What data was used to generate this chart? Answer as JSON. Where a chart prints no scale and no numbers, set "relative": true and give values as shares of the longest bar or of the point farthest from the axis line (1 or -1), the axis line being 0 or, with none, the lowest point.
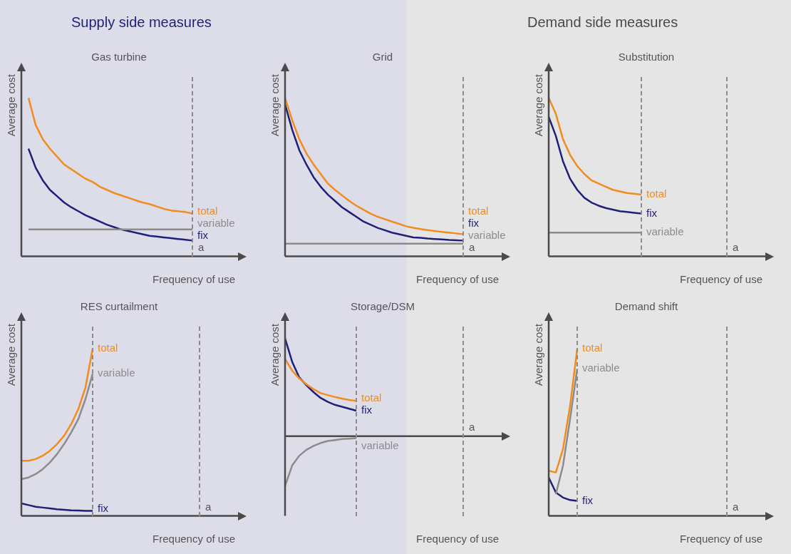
{
  "chart_data": [
    {
      "type": "other",
      "title": "Supply side measures"
    },
    {
      "type": "other",
      "title": "Demand side measures"
    },
    {
      "type": "line",
      "title": "Gas turbine",
      "xlabel": "Frequency of use",
      "ylabel": "Average cost",
      "relative": true,
      "annotations": [
        "a"
      ],
      "categories": [
        null,
        null,
        null,
        null,
        null,
        null,
        null,
        null,
        null,
        null,
        null,
        null,
        null,
        null,
        null,
        null,
        null,
        null,
        null,
        null,
        null,
        null,
        null,
        null,
        null,
        null,
        null,
        null,
        null,
        null,
        null
      ],
      "series": [
        {
          "name": "total",
          "color": "#f28c1e",
          "values": [
            null,
            1.0,
            0.83,
            0.74,
            0.68,
            0.63,
            0.58,
            0.55,
            0.52,
            0.49,
            0.47,
            0.44,
            0.42,
            0.4,
            0.385,
            0.37,
            0.355,
            0.34,
            0.33,
            0.315,
            0.3,
            0.29,
            0.285,
            0.28,
            0.27,
            null,
            null,
            null,
            null,
            null,
            null
          ]
        },
        {
          "name": "variable",
          "color": "#8c8c8c",
          "values": [
            null,
            0.17,
            0.17,
            0.17,
            0.17,
            0.17,
            0.17,
            0.17,
            0.17,
            0.17,
            0.17,
            0.17,
            0.17,
            0.17,
            0.17,
            0.17,
            0.17,
            0.17,
            0.17,
            0.17,
            0.17,
            0.17,
            0.17,
            0.17,
            0.17,
            null,
            null,
            null,
            null,
            null,
            null
          ]
        },
        {
          "name": "fix",
          "color": "#1f1f7a",
          "values": [
            null,
            0.68,
            0.56,
            0.48,
            0.42,
            0.38,
            0.34,
            0.31,
            0.285,
            0.26,
            0.24,
            0.22,
            0.2,
            0.185,
            0.17,
            0.16,
            0.15,
            0.14,
            0.13,
            0.125,
            0.12,
            0.115,
            0.11,
            0.105,
            0.1,
            null,
            null,
            null,
            null,
            null,
            null
          ]
        }
      ]
    },
    {
      "type": "line",
      "title": "Grid",
      "xlabel": "Frequency of use",
      "ylabel": "Average cost",
      "relative": true,
      "annotations": [
        "a"
      ],
      "categories": [
        null,
        null,
        null,
        null,
        null,
        null,
        null,
        null,
        null,
        null,
        null,
        null,
        null,
        null,
        null,
        null,
        null,
        null,
        null,
        null,
        null,
        null,
        null,
        null,
        null,
        null,
        null,
        null,
        null,
        null,
        null
      ],
      "series": [
        {
          "name": "total",
          "color": "#f28c1e",
          "values": [
            1.0,
            0.86,
            0.74,
            0.65,
            0.58,
            0.52,
            0.46,
            0.42,
            0.385,
            0.35,
            0.32,
            0.295,
            0.27,
            0.25,
            0.235,
            0.22,
            0.205,
            0.19,
            0.18,
            0.173,
            0.166,
            0.16,
            0.155,
            0.15,
            0.145,
            0.14,
            null,
            null,
            null,
            null,
            null
          ]
        },
        {
          "name": "fix",
          "color": "#1f1f7a",
          "values": [
            0.96,
            0.8,
            0.67,
            0.58,
            0.5,
            0.44,
            0.39,
            0.35,
            0.31,
            0.28,
            0.25,
            0.22,
            0.2,
            0.18,
            0.165,
            0.15,
            0.14,
            0.13,
            0.12,
            0.117,
            0.113,
            0.11,
            0.107,
            0.104,
            0.102,
            0.1,
            null,
            null,
            null,
            null,
            null
          ]
        },
        {
          "name": "variable",
          "color": "#8c8c8c",
          "values": [
            0.08,
            0.08,
            0.08,
            0.08,
            0.08,
            0.08,
            0.08,
            0.08,
            0.08,
            0.08,
            0.08,
            0.08,
            0.08,
            0.08,
            0.08,
            0.08,
            0.08,
            0.08,
            0.08,
            0.08,
            0.08,
            0.08,
            0.08,
            0.08,
            0.08,
            0.08,
            null,
            null,
            null,
            null,
            null
          ]
        }
      ]
    },
    {
      "type": "line",
      "title": "Substitution",
      "xlabel": "Frequency of use",
      "ylabel": "Average cost",
      "relative": true,
      "annotations": [
        "a"
      ],
      "categories": [
        null,
        null,
        null,
        null,
        null,
        null,
        null,
        null,
        null,
        null,
        null,
        null,
        null,
        null,
        null,
        null,
        null,
        null,
        null,
        null,
        null,
        null,
        null,
        null,
        null,
        null,
        null,
        null,
        null,
        null,
        null
      ],
      "series": [
        {
          "name": "total",
          "color": "#f28c1e",
          "values": [
            1.0,
            0.9,
            0.74,
            0.64,
            0.57,
            0.52,
            0.48,
            0.46,
            0.44,
            0.42,
            0.41,
            0.4,
            0.395,
            0.39,
            null,
            null,
            null,
            null,
            null,
            null,
            null,
            null,
            null,
            null,
            null,
            null,
            null,
            null,
            null,
            null,
            null
          ]
        },
        {
          "name": "fix",
          "color": "#1f1f7a",
          "values": [
            0.88,
            0.76,
            0.6,
            0.49,
            0.42,
            0.37,
            0.34,
            0.32,
            0.305,
            0.295,
            0.285,
            0.28,
            0.275,
            0.27,
            null,
            null,
            null,
            null,
            null,
            null,
            null,
            null,
            null,
            null,
            null,
            null,
            null,
            null,
            null,
            null,
            null
          ]
        },
        {
          "name": "variable",
          "color": "#8c8c8c",
          "values": [
            0.15,
            0.15,
            0.15,
            0.15,
            0.15,
            0.15,
            0.15,
            0.15,
            0.15,
            0.15,
            0.15,
            0.15,
            0.15,
            0.15,
            null,
            null,
            null,
            null,
            null,
            null,
            null,
            null,
            null,
            null,
            null,
            null,
            null,
            null,
            null,
            null,
            null
          ]
        }
      ]
    },
    {
      "type": "line",
      "title": "RES curtailment",
      "xlabel": "Frequency of use",
      "ylabel": "Average cost",
      "relative": true,
      "annotations": [
        "a"
      ],
      "categories": [
        null,
        null,
        null,
        null,
        null,
        null,
        null,
        null,
        null,
        null,
        null,
        null,
        null,
        null,
        null,
        null,
        null,
        null,
        null,
        null,
        null,
        null,
        null,
        null,
        null,
        null,
        null,
        null,
        null,
        null,
        null
      ],
      "series": [
        {
          "name": "total",
          "color": "#f28c1e",
          "values": [
            0.33,
            0.33,
            0.34,
            0.36,
            0.39,
            0.43,
            0.48,
            0.55,
            0.64,
            0.77,
            1.0,
            null,
            null,
            null,
            null,
            null,
            null,
            null,
            null,
            null,
            null,
            null,
            null,
            null,
            null,
            null,
            null,
            null,
            null,
            null,
            null
          ]
        },
        {
          "name": "variable",
          "color": "#8c8c8c",
          "values": [
            0.22,
            0.23,
            0.25,
            0.28,
            0.32,
            0.37,
            0.43,
            0.5,
            0.58,
            0.7,
            0.85,
            null,
            null,
            null,
            null,
            null,
            null,
            null,
            null,
            null,
            null,
            null,
            null,
            null,
            null,
            null,
            null,
            null,
            null,
            null,
            null
          ]
        },
        {
          "name": "fix",
          "color": "#1f1f7a",
          "values": [
            0.075,
            0.065,
            0.055,
            0.05,
            0.045,
            0.04,
            0.037,
            0.034,
            0.032,
            0.03,
            0.03,
            null,
            null,
            null,
            null,
            null,
            null,
            null,
            null,
            null,
            null,
            null,
            null,
            null,
            null,
            null,
            null,
            null,
            null,
            null,
            null
          ]
        }
      ]
    },
    {
      "type": "line",
      "title": "Storage/DSM",
      "xlabel": "Frequency of use",
      "ylabel": "Average cost",
      "relative": true,
      "annotations": [
        "a"
      ],
      "categories": [
        null,
        null,
        null,
        null,
        null,
        null,
        null,
        null,
        null,
        null,
        null,
        null,
        null,
        null,
        null,
        null,
        null,
        null,
        null,
        null,
        null,
        null,
        null,
        null,
        null,
        null,
        null,
        null,
        null,
        null,
        null
      ],
      "series": [
        {
          "name": "total",
          "color": "#f28c1e",
          "values": [
            0.79,
            0.67,
            0.59,
            0.53,
            0.48,
            0.44,
            0.42,
            0.4,
            0.385,
            0.37,
            0.36,
            null,
            null,
            null,
            null,
            null,
            null,
            null,
            null,
            null,
            null,
            null,
            null,
            null,
            null,
            null,
            null,
            null,
            null,
            null,
            null
          ]
        },
        {
          "name": "fix",
          "color": "#1f1f7a",
          "values": [
            1.0,
            0.76,
            0.6,
            0.52,
            0.45,
            0.39,
            0.35,
            0.32,
            0.3,
            0.28,
            0.26,
            null,
            null,
            null,
            null,
            null,
            null,
            null,
            null,
            null,
            null,
            null,
            null,
            null,
            null,
            null,
            null,
            null,
            null,
            null,
            null
          ]
        },
        {
          "name": "variable",
          "color": "#8c8c8c",
          "values": [
            -0.51,
            -0.3,
            -0.2,
            -0.14,
            -0.1,
            -0.07,
            -0.05,
            -0.04,
            -0.03,
            -0.025,
            -0.02,
            null,
            null,
            null,
            null,
            null,
            null,
            null,
            null,
            null,
            null,
            null,
            null,
            null,
            null,
            null,
            null,
            null,
            null,
            null,
            null
          ]
        }
      ]
    },
    {
      "type": "line",
      "title": "Demand shift",
      "xlabel": "Frequency of use",
      "ylabel": "Average cost",
      "relative": true,
      "annotations": [
        "a"
      ],
      "categories": [
        null,
        null,
        null,
        null,
        null,
        null,
        null,
        null,
        null,
        null,
        null,
        null,
        null,
        null,
        null,
        null,
        null,
        null,
        null,
        null,
        null,
        null,
        null,
        null,
        null,
        null,
        null,
        null,
        null,
        null,
        null
      ],
      "series": [
        {
          "name": "total",
          "color": "#f28c1e",
          "values": [
            0.27,
            0.26,
            0.4,
            0.66,
            1.0,
            null,
            null,
            null,
            null,
            null,
            null,
            null,
            null,
            null,
            null,
            null,
            null,
            null,
            null,
            null,
            null,
            null,
            null,
            null,
            null,
            null,
            null,
            null,
            null,
            null,
            null
          ]
        },
        {
          "name": "variable",
          "color": "#8c8c8c",
          "values": [
            null,
            0.13,
            0.3,
            0.58,
            0.88,
            null,
            null,
            null,
            null,
            null,
            null,
            null,
            null,
            null,
            null,
            null,
            null,
            null,
            null,
            null,
            null,
            null,
            null,
            null,
            null,
            null,
            null,
            null,
            null,
            null,
            null
          ]
        },
        {
          "name": "fix",
          "color": "#1f1f7a",
          "values": [
            0.23,
            0.14,
            0.11,
            0.095,
            0.09,
            null,
            null,
            null,
            null,
            null,
            null,
            null,
            null,
            null,
            null,
            null,
            null,
            null,
            null,
            null,
            null,
            null,
            null,
            null,
            null,
            null,
            null,
            null,
            null,
            null,
            null
          ]
        }
      ]
    }
  ]
}
